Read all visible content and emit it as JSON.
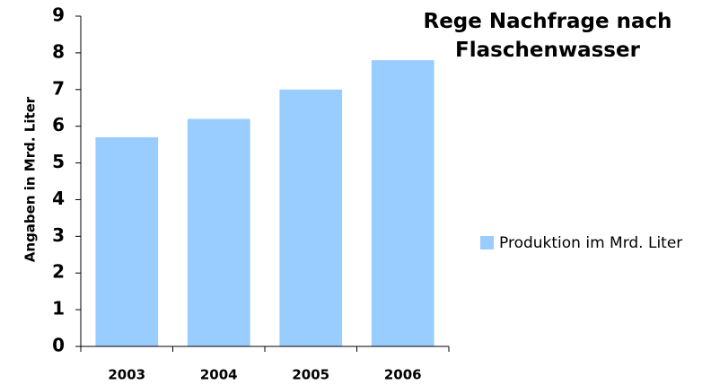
{
  "chart_data": {
    "type": "bar",
    "title": "Rege Nachfrage nach Flaschenwasser",
    "y_label": "Angaben in Mrd. Liter",
    "categories": [
      "2003",
      "2004",
      "2005",
      "2006"
    ],
    "series": [
      {
        "name": "Produktion im Mrd. Liter",
        "color": "#99ccff",
        "values": [
          5.7,
          6.2,
          7.0,
          7.8
        ]
      }
    ],
    "ylim": [
      0,
      9
    ],
    "yticks": [
      0,
      1,
      2,
      3,
      4,
      5,
      6,
      7,
      8,
      9
    ],
    "grid": false,
    "legend": "right"
  }
}
